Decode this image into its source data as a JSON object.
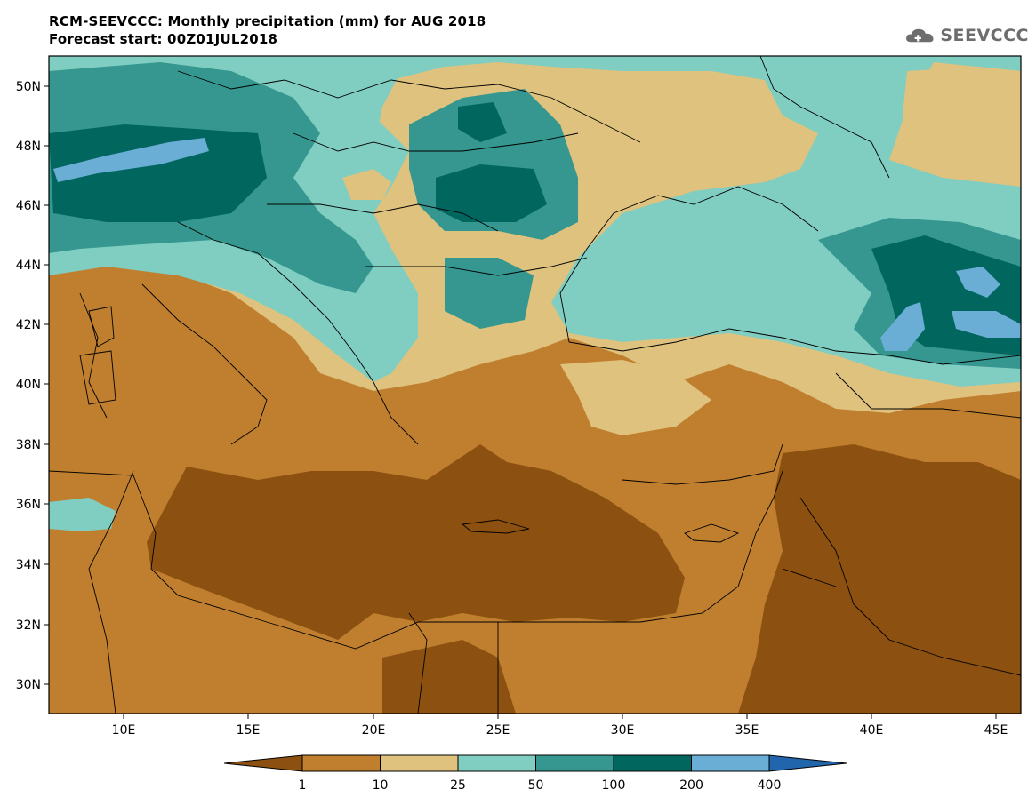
{
  "header": {
    "title_line1": "RCM-SEEVCCC: Monthly precipitation (mm) for AUG 2018",
    "title_line2": "Forecast start: 00Z01JUL2018",
    "logo_text": "SEEVCCC"
  },
  "map": {
    "lat_labels": [
      "50N",
      "48N",
      "46N",
      "44N",
      "42N",
      "40N",
      "38N",
      "36N",
      "34N",
      "32N",
      "30N"
    ],
    "lon_labels": [
      "10E",
      "15E",
      "20E",
      "25E",
      "30E",
      "35E",
      "40E",
      "45E"
    ]
  },
  "legend": {
    "thresholds": [
      "1",
      "10",
      "25",
      "50",
      "100",
      "200",
      "400"
    ],
    "colors": [
      "#8c5010",
      "#bf7f2f",
      "#dfc27d",
      "#80cdc1",
      "#35978f",
      "#01665e",
      "#6aaed6",
      "#2166ac"
    ]
  }
}
